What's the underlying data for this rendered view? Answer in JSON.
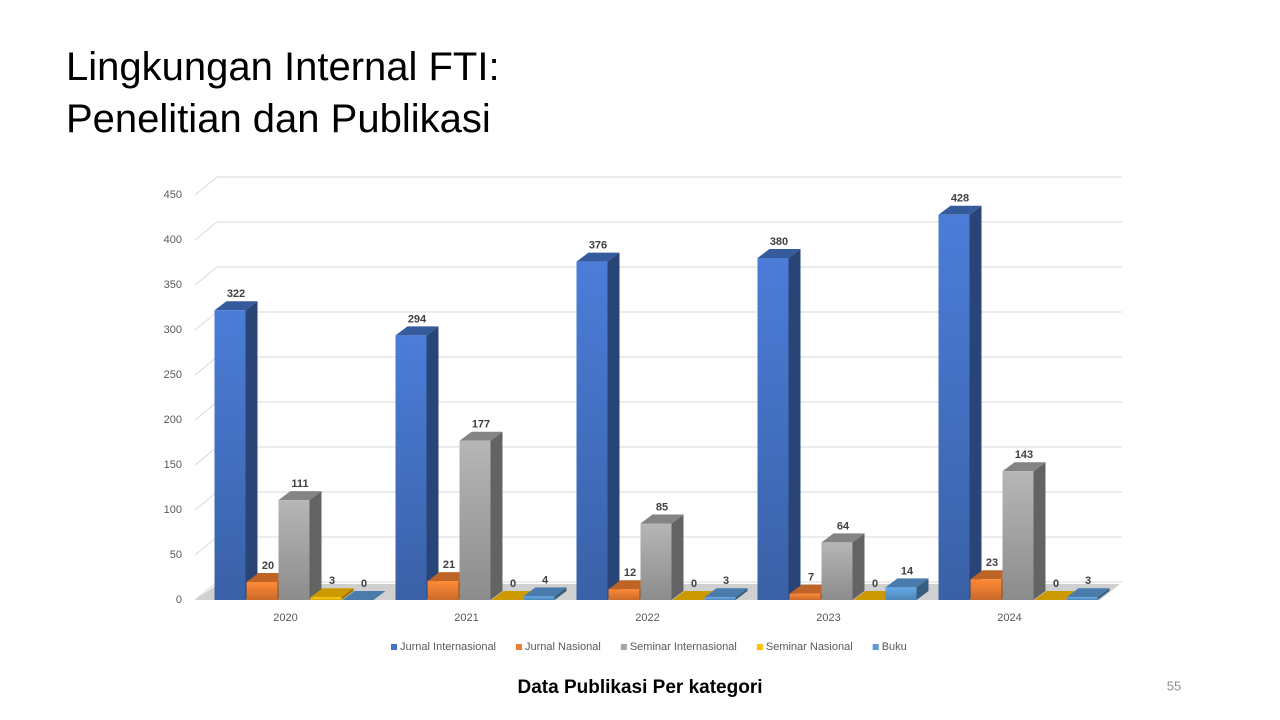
{
  "slide": {
    "title_lines": [
      "Lingkungan Internal FTI:",
      "Penelitian dan Publikasi"
    ],
    "caption": "Data Publikasi Per kategori",
    "page_number": 55
  },
  "chart_data": {
    "type": "bar3d",
    "categories": [
      "2020",
      "2021",
      "2022",
      "2023",
      "2024"
    ],
    "series": [
      {
        "name": "Jurnal Internasional",
        "color": "#4472c4",
        "values": [
          322,
          294,
          376,
          380,
          428
        ]
      },
      {
        "name": "Jurnal Nasional",
        "color": "#ed7d31",
        "values": [
          20,
          21,
          12,
          7,
          23
        ]
      },
      {
        "name": "Seminar Internasional",
        "color": "#a5a5a5",
        "values": [
          111,
          177,
          85,
          64,
          143
        ]
      },
      {
        "name": "Seminar Nasional",
        "color": "#ffc000",
        "values": [
          3,
          0,
          0,
          0,
          0
        ]
      },
      {
        "name": "Buku",
        "color": "#5b9bd5",
        "values": [
          0,
          4,
          3,
          14,
          3
        ]
      }
    ],
    "ylim": [
      0,
      450
    ],
    "yticks": [
      0,
      50,
      100,
      150,
      200,
      250,
      300,
      350,
      400,
      450
    ],
    "grid": true,
    "legend": "bottom"
  }
}
